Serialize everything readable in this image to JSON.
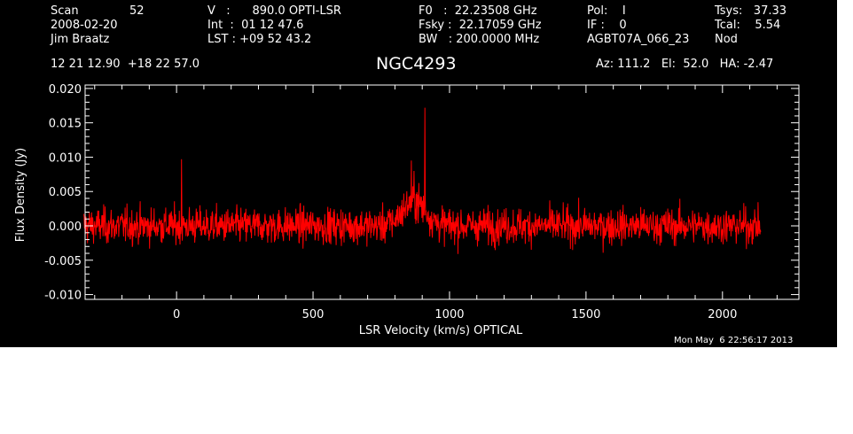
{
  "header": {
    "scan_label": "Scan",
    "scan_number": "52",
    "date": "2008-02-20",
    "observer": "Jim Braatz",
    "velocity": "V   :      890.0 OPTI-LSR",
    "int_time": "Int  :  01 12 47.6",
    "lst": "LST : +09 52 43.2",
    "f0": "F0   :  22.23508 GHz",
    "fsky": "Fsky :  22.17059 GHz",
    "bw": "BW   : 200.0000 MHz",
    "pol": "Pol:    I",
    "if": "IF :    0",
    "project": "AGBT07A_066_23",
    "tsys": "Tsys:   37.33",
    "tcal": "Tcal:    5.54",
    "mode": "Nod",
    "coords": "12 21 12.90  +18 22 57.0",
    "source": "NGC4293",
    "azelha": "Az: 111.2   El:  52.0   HA: -2.47",
    "timestamp": "Mon May  6 22:56:17 2013"
  },
  "chart_data": {
    "type": "line",
    "title": "NGC4293",
    "xlabel": "LSR Velocity (km/s) OPTICAL",
    "ylabel": "Flux Density (Jy)",
    "xlim": [
      -335,
      2280
    ],
    "ylim": [
      -0.0107,
      0.0205
    ],
    "xticks": [
      0,
      500,
      1000,
      1500,
      2000
    ],
    "yticks": [
      -0.01,
      -0.005,
      0.0,
      0.005,
      0.01,
      0.015,
      0.02
    ],
    "ytick_labels": [
      "-0.010",
      "-0.005",
      "0.000",
      "0.005",
      "0.010",
      "0.015",
      "0.020"
    ],
    "series": [
      {
        "color": "#ff0000",
        "x_range": [
          -340,
          2140
        ],
        "noise_rms": 0.0022,
        "baseline": 0.0,
        "notes": "noisy spectrum near zero with a narrow maser line",
        "features": [
          {
            "x": 910,
            "y": 0.0172
          },
          {
            "x": 860,
            "y": 0.0095
          },
          {
            "x": 18,
            "y": 0.0097
          },
          {
            "x": 870,
            "y": 0.008
          }
        ],
        "broad_bump": {
          "center": 870,
          "height": 0.0035,
          "width": 60
        }
      }
    ]
  },
  "colors": {
    "background": "#000000",
    "axes": "#ffffff",
    "series": "#ff0000"
  }
}
